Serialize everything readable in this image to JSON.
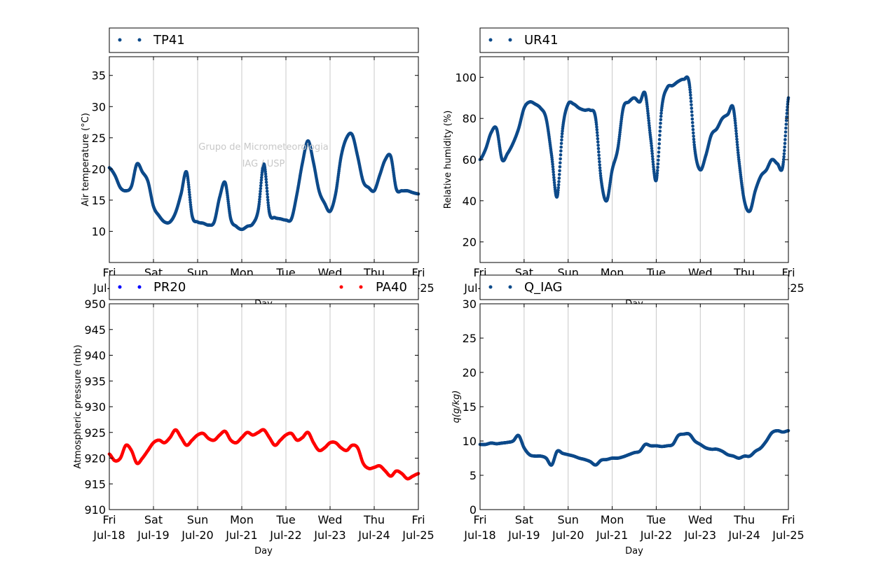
{
  "watermark": {
    "line1": "Grupo de Micrometeorologia",
    "line2": "IAG / USP"
  },
  "colors": {
    "navy": "#0d4a8a",
    "blue": "#0000ff",
    "red": "#ff0000",
    "grid": "#c8c8c8"
  },
  "x_axis": {
    "xlabel": "Day",
    "range": [
      "2014-07-18",
      "2014-07-25"
    ],
    "ticks_top": [
      "Fri",
      "Sat",
      "Sun",
      "Mon",
      "Tue",
      "Wed",
      "Thu",
      "Fri"
    ],
    "ticks_bottom": [
      "Jul-18",
      "Jul-19",
      "Jul-20",
      "Jul-21",
      "Jul-22",
      "Jul-23",
      "Jul-24",
      "Jul-25"
    ]
  },
  "chart_data": [
    {
      "type": "scatter",
      "legend": [
        "TP41"
      ],
      "ylabel": "Air temperature (°C)",
      "ylim": [
        5,
        38
      ],
      "yticks": [
        "10",
        "15",
        "20",
        "25",
        "30",
        "35"
      ],
      "grid": "vertical",
      "legend_placement": "top",
      "series": [
        {
          "name": "TP41",
          "color": "#0d4a8a",
          "x": [
            "Jul-18 00h",
            "Jul-18 03h",
            "Jul-18 06h",
            "Jul-18 09h",
            "Jul-18 12h",
            "Jul-18 15h",
            "Jul-18 18h",
            "Jul-18 21h",
            "Jul-19 00h",
            "Jul-19 03h",
            "Jul-19 06h",
            "Jul-19 09h",
            "Jul-19 12h",
            "Jul-19 15h",
            "Jul-19 18h",
            "Jul-19 21h",
            "Jul-20 00h",
            "Jul-20 03h",
            "Jul-20 06h",
            "Jul-20 09h",
            "Jul-20 12h",
            "Jul-20 15h",
            "Jul-20 18h",
            "Jul-20 21h",
            "Jul-21 00h",
            "Jul-21 03h",
            "Jul-21 06h",
            "Jul-21 09h",
            "Jul-21 12h",
            "Jul-21 15h",
            "Jul-21 18h",
            "Jul-21 21h",
            "Jul-22 00h",
            "Jul-22 03h",
            "Jul-22 06h",
            "Jul-22 09h",
            "Jul-22 12h",
            "Jul-22 15h",
            "Jul-22 18h",
            "Jul-22 21h",
            "Jul-23 00h",
            "Jul-23 03h",
            "Jul-23 06h",
            "Jul-23 09h",
            "Jul-23 12h",
            "Jul-23 15h",
            "Jul-23 18h",
            "Jul-23 21h",
            "Jul-24 00h",
            "Jul-24 03h",
            "Jul-24 06h",
            "Jul-24 09h",
            "Jul-24 12h",
            "Jul-24 15h",
            "Jul-24 18h",
            "Jul-24 21h",
            "Jul-25 00h"
          ],
          "values": [
            20.2,
            19.0,
            17.0,
            16.5,
            17.2,
            20.8,
            19.5,
            18.0,
            14.0,
            12.5,
            11.5,
            11.5,
            13.0,
            16.0,
            19.5,
            12.5,
            11.5,
            11.3,
            11.0,
            11.5,
            15.5,
            17.8,
            12.0,
            10.8,
            10.3,
            10.8,
            11.2,
            13.5,
            20.8,
            13.0,
            12.2,
            12.0,
            11.8,
            12.0,
            16.0,
            21.0,
            24.5,
            21.0,
            16.5,
            14.5,
            13.2,
            16.0,
            22.0,
            25.0,
            25.5,
            22.0,
            18.0,
            17.0,
            16.5,
            19.0,
            21.5,
            22.0,
            16.8,
            16.5,
            16.5,
            16.2,
            16.0
          ]
        }
      ]
    },
    {
      "type": "scatter",
      "legend": [
        "UR41"
      ],
      "ylabel": "Relative humidity (%)",
      "ylim": [
        10,
        110
      ],
      "yticks": [
        "20",
        "40",
        "60",
        "80",
        "100"
      ],
      "grid": "vertical",
      "legend_placement": "top",
      "series": [
        {
          "name": "UR41",
          "color": "#0d4a8a",
          "x": [
            "Jul-18 00h",
            "Jul-18 03h",
            "Jul-18 06h",
            "Jul-18 09h",
            "Jul-18 12h",
            "Jul-18 15h",
            "Jul-18 18h",
            "Jul-18 21h",
            "Jul-19 00h",
            "Jul-19 03h",
            "Jul-19 06h",
            "Jul-19 09h",
            "Jul-19 12h",
            "Jul-19 15h",
            "Jul-19 18h",
            "Jul-19 21h",
            "Jul-20 00h",
            "Jul-20 03h",
            "Jul-20 06h",
            "Jul-20 09h",
            "Jul-20 12h",
            "Jul-20 15h",
            "Jul-20 18h",
            "Jul-20 21h",
            "Jul-21 00h",
            "Jul-21 03h",
            "Jul-21 06h",
            "Jul-21 09h",
            "Jul-21 12h",
            "Jul-21 15h",
            "Jul-21 18h",
            "Jul-21 21h",
            "Jul-22 00h",
            "Jul-22 03h",
            "Jul-22 06h",
            "Jul-22 09h",
            "Jul-22 12h",
            "Jul-22 15h",
            "Jul-22 18h",
            "Jul-22 21h",
            "Jul-23 00h",
            "Jul-23 03h",
            "Jul-23 06h",
            "Jul-23 09h",
            "Jul-23 12h",
            "Jul-23 15h",
            "Jul-23 18h",
            "Jul-23 21h",
            "Jul-24 00h",
            "Jul-24 03h",
            "Jul-24 06h",
            "Jul-24 09h",
            "Jul-24 12h",
            "Jul-24 15h",
            "Jul-24 18h",
            "Jul-24 21h",
            "Jul-25 00h"
          ],
          "values": [
            60,
            65,
            73,
            75,
            60,
            63,
            68,
            75,
            85,
            88,
            87,
            85,
            80,
            62,
            42,
            75,
            87,
            87,
            85,
            84,
            84,
            80,
            50,
            40,
            55,
            65,
            85,
            88,
            90,
            88,
            92,
            70,
            50,
            85,
            95,
            96,
            98,
            99,
            97,
            65,
            55,
            62,
            72,
            75,
            80,
            82,
            85,
            60,
            40,
            35,
            45,
            52,
            55,
            60,
            58,
            57,
            90
          ]
        }
      ]
    },
    {
      "type": "scatter",
      "legend": [
        "PR20",
        "PA40"
      ],
      "ylabel": "Atmospheric pressure (mb)",
      "ylim": [
        910,
        950
      ],
      "yticks": [
        "910",
        "915",
        "920",
        "925",
        "930",
        "935",
        "940",
        "945",
        "950"
      ],
      "grid": "vertical",
      "legend_placement": "top",
      "series": [
        {
          "name": "PR20",
          "color": "#0000ff",
          "x": [],
          "values": []
        },
        {
          "name": "PA40",
          "color": "#ff0000",
          "x": [
            "Jul-18 00h",
            "Jul-18 03h",
            "Jul-18 06h",
            "Jul-18 09h",
            "Jul-18 12h",
            "Jul-18 15h",
            "Jul-18 18h",
            "Jul-18 21h",
            "Jul-19 00h",
            "Jul-19 03h",
            "Jul-19 06h",
            "Jul-19 09h",
            "Jul-19 12h",
            "Jul-19 15h",
            "Jul-19 18h",
            "Jul-19 21h",
            "Jul-20 00h",
            "Jul-20 03h",
            "Jul-20 06h",
            "Jul-20 09h",
            "Jul-20 12h",
            "Jul-20 15h",
            "Jul-20 18h",
            "Jul-20 21h",
            "Jul-21 00h",
            "Jul-21 03h",
            "Jul-21 06h",
            "Jul-21 09h",
            "Jul-21 12h",
            "Jul-21 15h",
            "Jul-21 18h",
            "Jul-21 21h",
            "Jul-22 00h",
            "Jul-22 03h",
            "Jul-22 06h",
            "Jul-22 09h",
            "Jul-22 12h",
            "Jul-22 15h",
            "Jul-22 18h",
            "Jul-22 21h",
            "Jul-23 00h",
            "Jul-23 03h",
            "Jul-23 06h",
            "Jul-23 09h",
            "Jul-23 12h",
            "Jul-23 15h",
            "Jul-23 18h",
            "Jul-23 21h",
            "Jul-24 00h",
            "Jul-24 03h",
            "Jul-24 06h",
            "Jul-24 09h",
            "Jul-24 12h",
            "Jul-24 15h",
            "Jul-24 18h",
            "Jul-24 21h",
            "Jul-25 00h"
          ],
          "values": [
            920.8,
            919.5,
            920.0,
            922.5,
            921.5,
            919.0,
            920.0,
            921.5,
            923.0,
            923.5,
            923.0,
            924.0,
            925.5,
            924.0,
            922.5,
            923.5,
            924.5,
            924.8,
            923.8,
            923.5,
            924.5,
            925.2,
            923.5,
            923.0,
            924.0,
            925.0,
            924.5,
            925.0,
            925.5,
            924.0,
            922.5,
            923.5,
            924.5,
            924.8,
            923.5,
            924.0,
            925.0,
            923.0,
            921.5,
            922.0,
            923.0,
            923.0,
            922.0,
            921.5,
            922.5,
            922.0,
            919.0,
            918.0,
            918.2,
            918.5,
            917.5,
            916.5,
            917.5,
            917.0,
            916.0,
            916.5,
            917.0
          ]
        }
      ]
    },
    {
      "type": "scatter",
      "legend": [
        "Q_IAG"
      ],
      "ylabel": "q(g/kg)",
      "ylim": [
        0,
        30
      ],
      "yticks": [
        "0",
        "5",
        "10",
        "15",
        "20",
        "25",
        "30"
      ],
      "grid": "vertical",
      "legend_placement": "top",
      "series": [
        {
          "name": "Q_IAG",
          "color": "#0d4a8a",
          "x": [
            "Jul-18 00h",
            "Jul-18 03h",
            "Jul-18 06h",
            "Jul-18 09h",
            "Jul-18 12h",
            "Jul-18 15h",
            "Jul-18 18h",
            "Jul-18 21h",
            "Jul-19 00h",
            "Jul-19 03h",
            "Jul-19 06h",
            "Jul-19 09h",
            "Jul-19 12h",
            "Jul-19 15h",
            "Jul-19 18h",
            "Jul-19 21h",
            "Jul-20 00h",
            "Jul-20 03h",
            "Jul-20 06h",
            "Jul-20 09h",
            "Jul-20 12h",
            "Jul-20 15h",
            "Jul-20 18h",
            "Jul-20 21h",
            "Jul-21 00h",
            "Jul-21 03h",
            "Jul-21 06h",
            "Jul-21 09h",
            "Jul-21 12h",
            "Jul-21 15h",
            "Jul-21 18h",
            "Jul-21 21h",
            "Jul-22 00h",
            "Jul-22 03h",
            "Jul-22 06h",
            "Jul-22 09h",
            "Jul-22 12h",
            "Jul-22 15h",
            "Jul-22 18h",
            "Jul-22 21h",
            "Jul-23 00h",
            "Jul-23 03h",
            "Jul-23 06h",
            "Jul-23 09h",
            "Jul-23 12h",
            "Jul-23 15h",
            "Jul-23 18h",
            "Jul-23 21h",
            "Jul-24 00h",
            "Jul-24 03h",
            "Jul-24 06h",
            "Jul-24 09h",
            "Jul-24 12h",
            "Jul-24 15h",
            "Jul-24 18h",
            "Jul-24 21h",
            "Jul-25 00h"
          ],
          "values": [
            9.5,
            9.5,
            9.7,
            9.6,
            9.7,
            9.8,
            10.0,
            10.8,
            9.0,
            8.0,
            7.8,
            7.8,
            7.5,
            6.5,
            8.5,
            8.2,
            8.0,
            7.8,
            7.5,
            7.3,
            7.0,
            6.5,
            7.2,
            7.3,
            7.5,
            7.5,
            7.7,
            8.0,
            8.3,
            8.5,
            9.5,
            9.3,
            9.3,
            9.2,
            9.3,
            9.5,
            10.8,
            11.0,
            11.0,
            10.0,
            9.5,
            9.0,
            8.8,
            8.8,
            8.5,
            8.0,
            7.8,
            7.5,
            7.8,
            7.8,
            8.5,
            9.0,
            10.0,
            11.2,
            11.5,
            11.3,
            11.5
          ]
        }
      ]
    }
  ]
}
